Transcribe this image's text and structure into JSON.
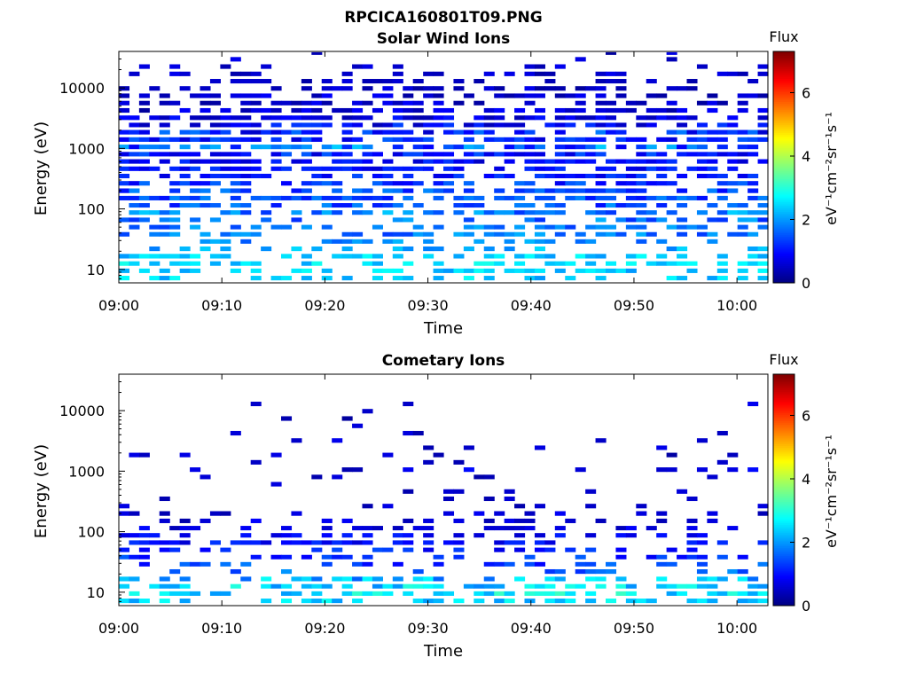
{
  "figure": {
    "title": "RPCICA160801T09.PNG"
  },
  "chart_data": [
    {
      "type": "heatmap",
      "title": "Solar Wind Ions",
      "xlabel": "Time",
      "ylabel": "Energy (eV)",
      "x_range": [
        "09:00",
        "10:03"
      ],
      "x_ticks": [
        "09:00",
        "09:10",
        "09:20",
        "09:30",
        "09:40",
        "09:50",
        "10:00"
      ],
      "y_scale": "log",
      "y_range": [
        6,
        40000
      ],
      "y_ticks": [
        {
          "value": 10,
          "label": "10"
        },
        {
          "value": 100,
          "label": "100"
        },
        {
          "value": 1000,
          "label": "1000"
        },
        {
          "value": 10000,
          "label": "10000"
        }
      ],
      "colorbar": {
        "title": "Flux",
        "label": "eV⁻¹cm⁻²sr⁻¹s⁻¹",
        "range": [
          0,
          7.3
        ],
        "ticks": [
          0,
          2,
          4,
          6
        ],
        "colormap": "jet"
      },
      "grid": false,
      "time_bins": 64,
      "energy_bins": [
        {
          "energy": 7.2,
          "coverage": 0.45,
          "value_min": 2.0,
          "value_max": 2.8
        },
        {
          "energy": 9.5,
          "coverage": 0.5,
          "value_min": 2.0,
          "value_max": 2.8
        },
        {
          "energy": 12.5,
          "coverage": 0.55,
          "value_min": 2.1,
          "value_max": 2.9
        },
        {
          "energy": 16.5,
          "coverage": 0.5,
          "value_min": 2.0,
          "value_max": 2.8
        },
        {
          "energy": 22,
          "coverage": 0.3,
          "value_min": 1.8,
          "value_max": 2.5
        },
        {
          "energy": 29,
          "coverage": 0.35,
          "value_min": 1.5,
          "value_max": 2.3
        },
        {
          "energy": 38,
          "coverage": 0.45,
          "value_min": 1.3,
          "value_max": 2.2
        },
        {
          "energy": 50,
          "coverage": 0.5,
          "value_min": 1.3,
          "value_max": 2.2
        },
        {
          "energy": 66,
          "coverage": 0.5,
          "value_min": 1.2,
          "value_max": 2.2
        },
        {
          "energy": 87,
          "coverage": 0.55,
          "value_min": 1.3,
          "value_max": 2.4
        },
        {
          "energy": 115,
          "coverage": 0.55,
          "value_min": 1.0,
          "value_max": 2.0
        },
        {
          "energy": 150,
          "coverage": 0.6,
          "value_min": 1.0,
          "value_max": 1.9
        },
        {
          "energy": 200,
          "coverage": 0.6,
          "value_min": 0.9,
          "value_max": 1.9
        },
        {
          "energy": 265,
          "coverage": 0.6,
          "value_min": 0.8,
          "value_max": 1.7
        },
        {
          "energy": 350,
          "coverage": 0.6,
          "value_min": 0.7,
          "value_max": 1.5
        },
        {
          "energy": 460,
          "coverage": 0.65,
          "value_min": 0.6,
          "value_max": 1.4
        },
        {
          "energy": 610,
          "coverage": 0.7,
          "value_min": 0.5,
          "value_max": 1.3
        },
        {
          "energy": 800,
          "coverage": 0.75,
          "value_min": 0.6,
          "value_max": 1.6
        },
        {
          "energy": 1060,
          "coverage": 0.75,
          "value_min": 0.8,
          "value_max": 2.4
        },
        {
          "energy": 1400,
          "coverage": 0.7,
          "value_min": 0.6,
          "value_max": 1.6
        },
        {
          "energy": 1850,
          "coverage": 0.7,
          "value_min": 0.5,
          "value_max": 1.8
        },
        {
          "energy": 2440,
          "coverage": 0.65,
          "value_min": 0.4,
          "value_max": 1.4
        },
        {
          "energy": 3200,
          "coverage": 0.65,
          "value_min": 0.3,
          "value_max": 1.1
        },
        {
          "energy": 4250,
          "coverage": 0.6,
          "value_min": 0.2,
          "value_max": 1.0
        },
        {
          "energy": 5600,
          "coverage": 0.55,
          "value_min": 0.2,
          "value_max": 0.9
        },
        {
          "energy": 7400,
          "coverage": 0.5,
          "value_min": 0.2,
          "value_max": 0.9
        },
        {
          "energy": 9800,
          "coverage": 0.45,
          "value_min": 0.2,
          "value_max": 0.8
        },
        {
          "energy": 12900,
          "coverage": 0.4,
          "value_min": 0.2,
          "value_max": 0.8
        },
        {
          "energy": 17000,
          "coverage": 0.3,
          "value_min": 0.2,
          "value_max": 0.8
        },
        {
          "energy": 22500,
          "coverage": 0.2,
          "value_min": 0.2,
          "value_max": 0.8
        },
        {
          "energy": 29700,
          "coverage": 0.12,
          "value_min": 0.2,
          "value_max": 0.8
        },
        {
          "energy": 39000,
          "coverage": 0.05,
          "value_min": 0.2,
          "value_max": 0.8
        }
      ]
    },
    {
      "type": "heatmap",
      "title": "Cometary Ions",
      "xlabel": "Time",
      "ylabel": "Energy (eV)",
      "x_range": [
        "09:00",
        "10:03"
      ],
      "x_ticks": [
        "09:00",
        "09:10",
        "09:20",
        "09:30",
        "09:40",
        "09:50",
        "10:00"
      ],
      "y_scale": "log",
      "y_range": [
        6,
        40000
      ],
      "y_ticks": [
        {
          "value": 10,
          "label": "10"
        },
        {
          "value": 100,
          "label": "100"
        },
        {
          "value": 1000,
          "label": "1000"
        },
        {
          "value": 10000,
          "label": "10000"
        }
      ],
      "colorbar": {
        "title": "Flux",
        "label": "eV⁻¹cm⁻²sr⁻¹s⁻¹",
        "range": [
          0,
          7.3
        ],
        "ticks": [
          0,
          2,
          4,
          6
        ],
        "colormap": "jet"
      },
      "grid": false,
      "time_bins": 64,
      "energy_bins": [
        {
          "energy": 7.2,
          "coverage": 0.5,
          "value_min": 2.0,
          "value_max": 3.0
        },
        {
          "energy": 9.5,
          "coverage": 0.55,
          "value_min": 2.0,
          "value_max": 3.2
        },
        {
          "energy": 12.5,
          "coverage": 0.55,
          "value_min": 1.8,
          "value_max": 3.0
        },
        {
          "energy": 16.5,
          "coverage": 0.5,
          "value_min": 1.6,
          "value_max": 2.8
        },
        {
          "energy": 22,
          "coverage": 0.25,
          "value_min": 1.0,
          "value_max": 2.0
        },
        {
          "energy": 29,
          "coverage": 0.3,
          "value_min": 0.9,
          "value_max": 1.8
        },
        {
          "energy": 38,
          "coverage": 0.35,
          "value_min": 0.8,
          "value_max": 1.6
        },
        {
          "energy": 50,
          "coverage": 0.4,
          "value_min": 0.7,
          "value_max": 1.5
        },
        {
          "energy": 66,
          "coverage": 0.45,
          "value_min": 0.6,
          "value_max": 1.3
        },
        {
          "energy": 87,
          "coverage": 0.4,
          "value_min": 0.5,
          "value_max": 1.2
        },
        {
          "energy": 115,
          "coverage": 0.35,
          "value_min": 0.4,
          "value_max": 1.0
        },
        {
          "energy": 150,
          "coverage": 0.3,
          "value_min": 0.3,
          "value_max": 0.9
        },
        {
          "energy": 200,
          "coverage": 0.2,
          "value_min": 0.3,
          "value_max": 0.9
        },
        {
          "energy": 265,
          "coverage": 0.15,
          "value_min": 0.3,
          "value_max": 0.8
        },
        {
          "energy": 350,
          "coverage": 0.1,
          "value_min": 0.2,
          "value_max": 0.7
        },
        {
          "energy": 460,
          "coverage": 0.08,
          "value_min": 0.2,
          "value_max": 0.7
        },
        {
          "energy": 610,
          "coverage": 0.08,
          "value_min": 0.2,
          "value_max": 0.8
        },
        {
          "energy": 800,
          "coverage": 0.1,
          "value_min": 0.2,
          "value_max": 0.9
        },
        {
          "energy": 1060,
          "coverage": 0.12,
          "value_min": 0.3,
          "value_max": 1.0
        },
        {
          "energy": 1400,
          "coverage": 0.08,
          "value_min": 0.2,
          "value_max": 0.8
        },
        {
          "energy": 1850,
          "coverage": 0.08,
          "value_min": 0.2,
          "value_max": 0.8
        },
        {
          "energy": 2440,
          "coverage": 0.06,
          "value_min": 0.2,
          "value_max": 0.8
        },
        {
          "energy": 3200,
          "coverage": 0.06,
          "value_min": 0.2,
          "value_max": 0.8
        },
        {
          "energy": 4250,
          "coverage": 0.06,
          "value_min": 0.2,
          "value_max": 0.8
        },
        {
          "energy": 5600,
          "coverage": 0.06,
          "value_min": 0.2,
          "value_max": 0.8
        },
        {
          "energy": 7400,
          "coverage": 0.05,
          "value_min": 0.2,
          "value_max": 0.8
        },
        {
          "energy": 9800,
          "coverage": 0.04,
          "value_min": 0.2,
          "value_max": 0.8
        },
        {
          "energy": 12900,
          "coverage": 0.03,
          "value_min": 0.2,
          "value_max": 0.8
        },
        {
          "energy": 17000,
          "coverage": 0.02,
          "value_min": 0.2,
          "value_max": 0.8
        },
        {
          "energy": 22500,
          "coverage": 0.01,
          "value_min": 0.2,
          "value_max": 0.8
        },
        {
          "energy": 29700,
          "coverage": 0.0,
          "value_min": 0.2,
          "value_max": 0.8
        },
        {
          "energy": 39000,
          "coverage": 0.0,
          "value_min": 0.2,
          "value_max": 0.8
        }
      ]
    }
  ]
}
